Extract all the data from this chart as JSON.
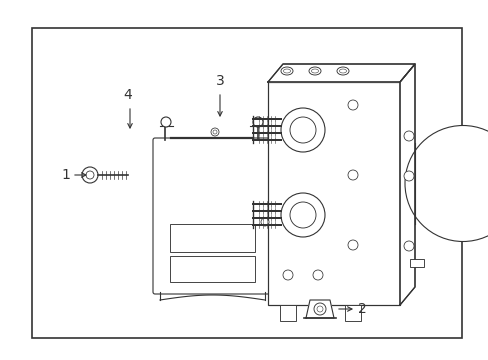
{
  "background_color": "#ffffff",
  "border_color": "#333333",
  "border_linewidth": 1.2,
  "line_color": "#333333",
  "line_width": 0.8,
  "fig_w": 4.89,
  "fig_h": 3.6,
  "dpi": 100
}
